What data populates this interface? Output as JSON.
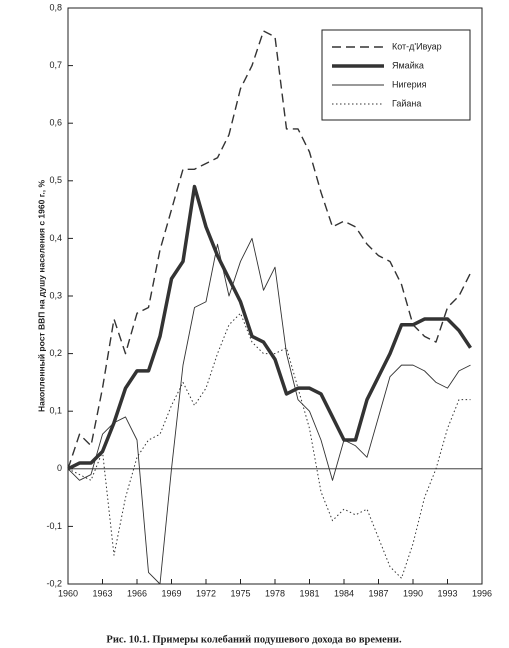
{
  "chart_data": {
    "type": "line",
    "y_label": "Накопленный рост ВВП на душу населения с 1960 г., %",
    "caption": "Рис. 10.1. Примеры колебаний подушевого дохода во времени.",
    "x": [
      1960,
      1961,
      1962,
      1963,
      1964,
      1965,
      1966,
      1967,
      1968,
      1969,
      1970,
      1971,
      1972,
      1973,
      1974,
      1975,
      1976,
      1977,
      1978,
      1979,
      1980,
      1981,
      1982,
      1983,
      1984,
      1985,
      1986,
      1987,
      1988,
      1989,
      1990,
      1991,
      1992,
      1993,
      1994,
      1995
    ],
    "xlim": [
      1960,
      1996
    ],
    "xticks": [
      1960,
      1963,
      1966,
      1969,
      1972,
      1975,
      1978,
      1981,
      1984,
      1987,
      1990,
      1993,
      1996
    ],
    "ylim": [
      -0.2,
      0.8
    ],
    "yticks": [
      {
        "value": -0.2,
        "label": "-0,2"
      },
      {
        "value": -0.1,
        "label": "-0,1"
      },
      0,
      {
        "value": 0.1,
        "label": "0,1"
      },
      {
        "value": 0.2,
        "label": "0,2"
      },
      {
        "value": 0.3,
        "label": "0,3"
      },
      {
        "value": 0.4,
        "label": "0,4"
      },
      {
        "value": 0.5,
        "label": "0,5"
      },
      {
        "value": 0.6,
        "label": "0,6"
      },
      {
        "value": 0.7,
        "label": "0,7"
      },
      {
        "value": 0.8,
        "label": "0,8"
      }
    ],
    "legend": "top-right",
    "series": [
      {
        "name": "Кот-д'Ивуар",
        "color": "#333333",
        "line_style": "dashed",
        "values": [
          0,
          0.06,
          0.04,
          0.14,
          0.26,
          0.2,
          0.27,
          0.28,
          0.38,
          0.45,
          0.52,
          0.52,
          0.53,
          0.54,
          0.58,
          0.66,
          0.7,
          0.76,
          0.75,
          0.59,
          0.59,
          0.55,
          0.48,
          0.42,
          0.43,
          0.42,
          0.39,
          0.37,
          0.36,
          0.32,
          0.25,
          0.23,
          0.22,
          0.28,
          0.3,
          0.34
        ]
      },
      {
        "name": "Ямайка",
        "color": "#333333",
        "line_style": "thick",
        "values": [
          0,
          0.01,
          0.01,
          0.03,
          0.08,
          0.14,
          0.17,
          0.17,
          0.23,
          0.33,
          0.36,
          0.49,
          0.42,
          0.37,
          0.33,
          0.29,
          0.23,
          0.22,
          0.19,
          0.13,
          0.14,
          0.14,
          0.13,
          0.09,
          0.05,
          0.05,
          0.12,
          0.16,
          0.2,
          0.25,
          0.25,
          0.26,
          0.26,
          0.26,
          0.24,
          0.21
        ]
      },
      {
        "name": "Нигерия",
        "color": "#333333",
        "line_style": "thin",
        "values": [
          0,
          -0.02,
          -0.01,
          0.06,
          0.08,
          0.09,
          0.05,
          -0.18,
          -0.2,
          0,
          0.18,
          0.28,
          0.29,
          0.39,
          0.3,
          0.36,
          0.4,
          0.31,
          0.35,
          0.2,
          0.12,
          0.1,
          0.05,
          -0.02,
          0.05,
          0.04,
          0.02,
          0.09,
          0.16,
          0.18,
          0.18,
          0.17,
          0.15,
          0.14,
          0.17,
          0.18
        ]
      },
      {
        "name": "Гайана",
        "color": "#333333",
        "line_style": "dotted",
        "values": [
          0,
          -0.01,
          -0.02,
          0.03,
          -0.15,
          -0.05,
          0.02,
          0.05,
          0.06,
          0.11,
          0.15,
          0.11,
          0.14,
          0.2,
          0.25,
          0.27,
          0.22,
          0.2,
          0.2,
          0.21,
          0.14,
          0.07,
          -0.04,
          -0.09,
          -0.07,
          -0.08,
          -0.07,
          -0.12,
          -0.17,
          -0.19,
          -0.13,
          -0.05,
          0,
          0.07,
          0.12,
          0.12
        ]
      }
    ]
  }
}
